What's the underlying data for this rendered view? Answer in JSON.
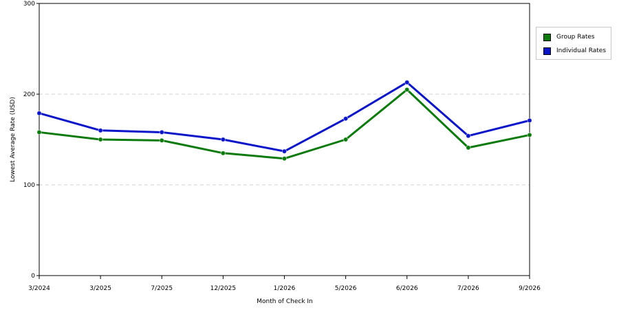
{
  "chart_data": {
    "type": "line",
    "title": "",
    "xlabel": "Month of Check In",
    "ylabel": "Lowest Average Rate (USD)",
    "x": [
      "3/2024",
      "3/2025",
      "7/2025",
      "12/2025",
      "1/2026",
      "5/2026",
      "6/2026",
      "7/2026",
      "9/2026"
    ],
    "ylim": [
      0,
      300
    ],
    "yticks": [
      0,
      100,
      200,
      300
    ],
    "grid": "horizontal dashed at 100 and 200",
    "legend_position": "right",
    "series": [
      {
        "name": "Group Rates",
        "color": "#0c7a0c",
        "values": [
          158,
          150,
          149,
          135,
          129,
          150,
          205,
          141,
          155
        ]
      },
      {
        "name": "Individual Rates",
        "color": "#0a14c8",
        "values": [
          179,
          160,
          158,
          150,
          137,
          173,
          213,
          154,
          171
        ]
      }
    ]
  }
}
